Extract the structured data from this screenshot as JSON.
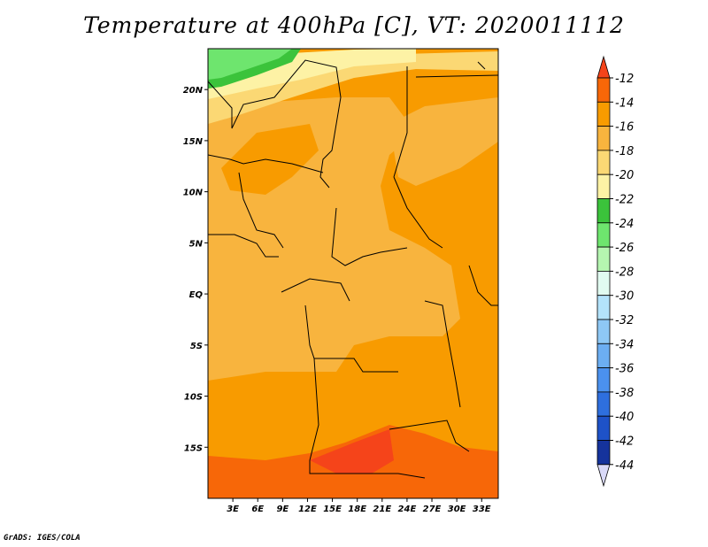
{
  "title": "Temperature at 400hPa [C], VT: 2020011112",
  "footer": "GrADS: IGES/COLA",
  "map": {
    "variable": "Temperature at 400hPa",
    "unit": "C",
    "valid_time": "2020011112",
    "lon_range": [
      0,
      35
    ],
    "lat_range": [
      -20,
      24
    ],
    "lon_ticks": [
      "3E",
      "6E",
      "9E",
      "12E",
      "15E",
      "18E",
      "21E",
      "24E",
      "27E",
      "30E",
      "33E"
    ],
    "lat_ticks": [
      "20N",
      "15N",
      "10N",
      "5N",
      "EQ",
      "5S",
      "10S",
      "15S"
    ]
  },
  "colorbar": {
    "levels": [
      "-12",
      "-14",
      "-16",
      "-18",
      "-20",
      "-22",
      "-24",
      "-26",
      "-28",
      "-30",
      "-32",
      "-34",
      "-36",
      "-38",
      "-40",
      "-42",
      "-44"
    ],
    "colors": {
      "warmest": "#f5441a",
      "b_12_14": "#f76708",
      "b_14_16": "#f89b00",
      "b_16_18": "#f8b43e",
      "b_18_20": "#fbd874",
      "b_20_22": "#fdf2a5",
      "b_22_24": "#3bc33b",
      "b_24_26": "#6ee56e",
      "b_26_28": "#b5f5b0",
      "b_28_30": "#e1fbf1",
      "b_30_32": "#b3e3fb",
      "b_32_34": "#8ec8f5",
      "b_34_36": "#6caef2",
      "b_36_38": "#4b91ee",
      "b_38_40": "#2e6fde",
      "b_40_42": "#1e52c8",
      "b_42_44": "#15339c",
      "coldest": "#d9d9f8"
    }
  }
}
